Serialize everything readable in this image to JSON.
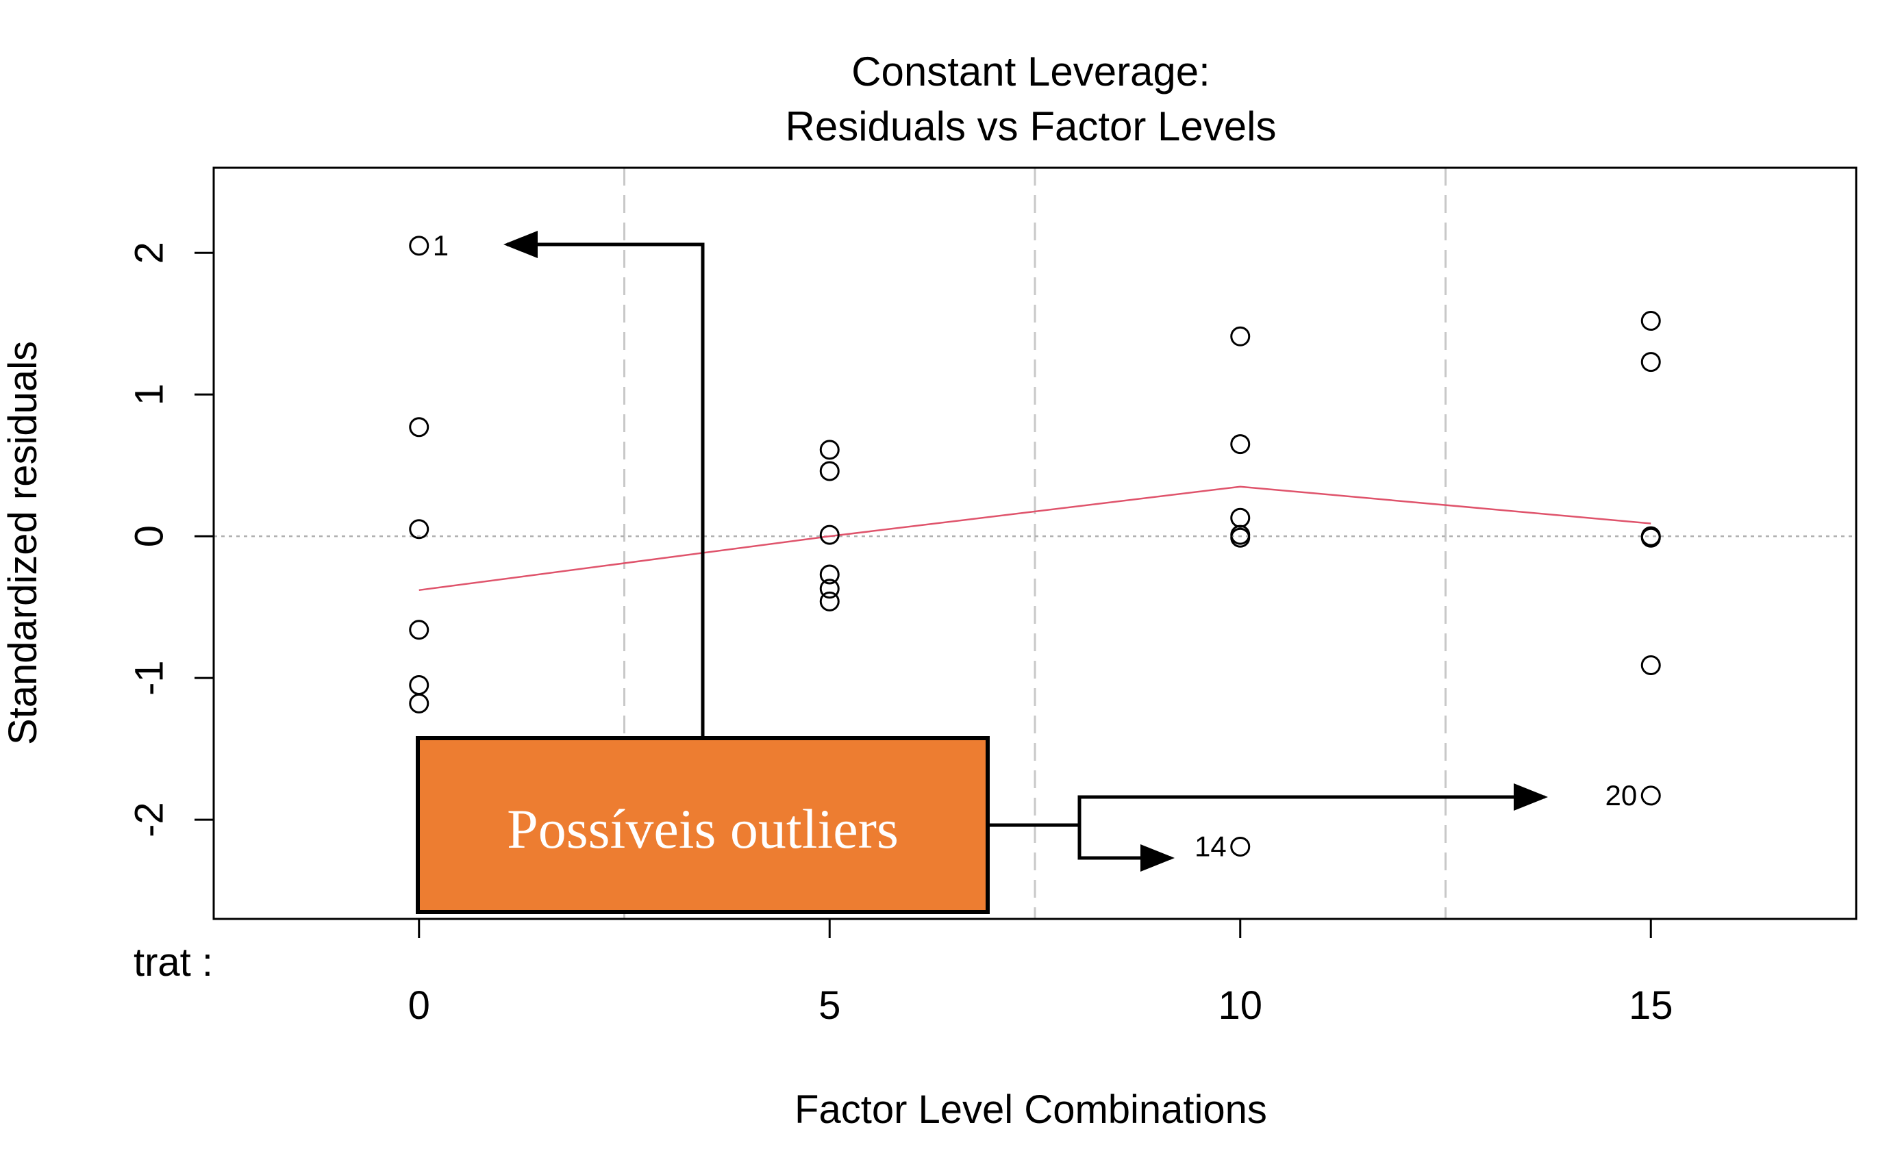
{
  "chart_data": {
    "type": "scatter",
    "title": [
      "Constant Leverage:",
      "Residuals vs Factor Levels"
    ],
    "xlabel": "Factor Level Combinations",
    "ylabel": "Standardized residuals",
    "factor_label": "trat :",
    "x_levels": [
      0,
      5,
      10,
      15
    ],
    "x_tick_labels": [
      "0",
      "5",
      "10",
      "15"
    ],
    "y_ticks": [
      -2,
      -1,
      0,
      1,
      2
    ],
    "y_tick_labels": [
      "-2",
      "-1",
      "0",
      "1",
      "2"
    ],
    "xlim": [
      -2.5,
      17.5
    ],
    "ylim": [
      -2.7,
      2.6
    ],
    "vertical_gridlines": [
      -2.5,
      2.5,
      7.5,
      12.5,
      17.5
    ],
    "zero_line": 0,
    "points": [
      {
        "x": 0,
        "y": 2.05,
        "label": "1"
      },
      {
        "x": 0,
        "y": 0.77
      },
      {
        "x": 0,
        "y": 0.05
      },
      {
        "x": 0,
        "y": -0.66
      },
      {
        "x": 0,
        "y": -1.05
      },
      {
        "x": 0,
        "y": -1.18
      },
      {
        "x": 5,
        "y": 0.61
      },
      {
        "x": 5,
        "y": 0.46
      },
      {
        "x": 5,
        "y": 0.01
      },
      {
        "x": 5,
        "y": -0.27
      },
      {
        "x": 5,
        "y": -0.37
      },
      {
        "x": 5,
        "y": -0.46
      },
      {
        "x": 10,
        "y": 1.41
      },
      {
        "x": 10,
        "y": 0.65
      },
      {
        "x": 10,
        "y": 0.13
      },
      {
        "x": 10,
        "y": 0.01
      },
      {
        "x": 10,
        "y": -0.01
      },
      {
        "x": 10,
        "y": -2.19,
        "label": "14"
      },
      {
        "x": 15,
        "y": 1.52
      },
      {
        "x": 15,
        "y": 1.23
      },
      {
        "x": 15,
        "y": 0.0
      },
      {
        "x": 15,
        "y": -0.01
      },
      {
        "x": 15,
        "y": -0.91
      },
      {
        "x": 15,
        "y": -1.83,
        "label": "20"
      }
    ],
    "smooth_line": {
      "x": [
        0,
        5,
        10,
        15
      ],
      "y": [
        -0.38,
        0.0,
        0.35,
        0.09
      ],
      "color": "#df536b"
    },
    "callout": {
      "text": "Possíveis outliers",
      "fill": "#ed7d31",
      "border": "#000000"
    }
  }
}
